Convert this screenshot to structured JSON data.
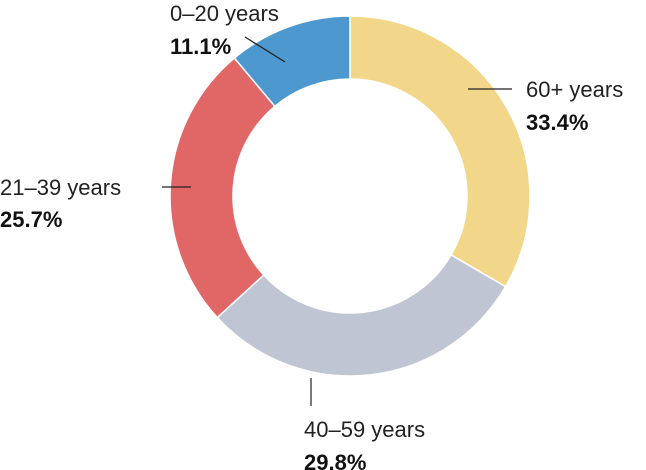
{
  "chart_data": {
    "type": "pie",
    "variant": "donut",
    "title": "",
    "categories": [
      "60+ years",
      "40–59 years",
      "21–39 years",
      "0–20 years"
    ],
    "values": [
      33.4,
      29.8,
      25.7,
      11.1
    ],
    "value_labels": [
      "33.4%",
      "29.8%",
      "25.7%",
      "11.1%"
    ],
    "colors": [
      "#f2d68a",
      "#bfc5d3",
      "#e06766",
      "#4d98cf"
    ],
    "legend": "none"
  }
}
